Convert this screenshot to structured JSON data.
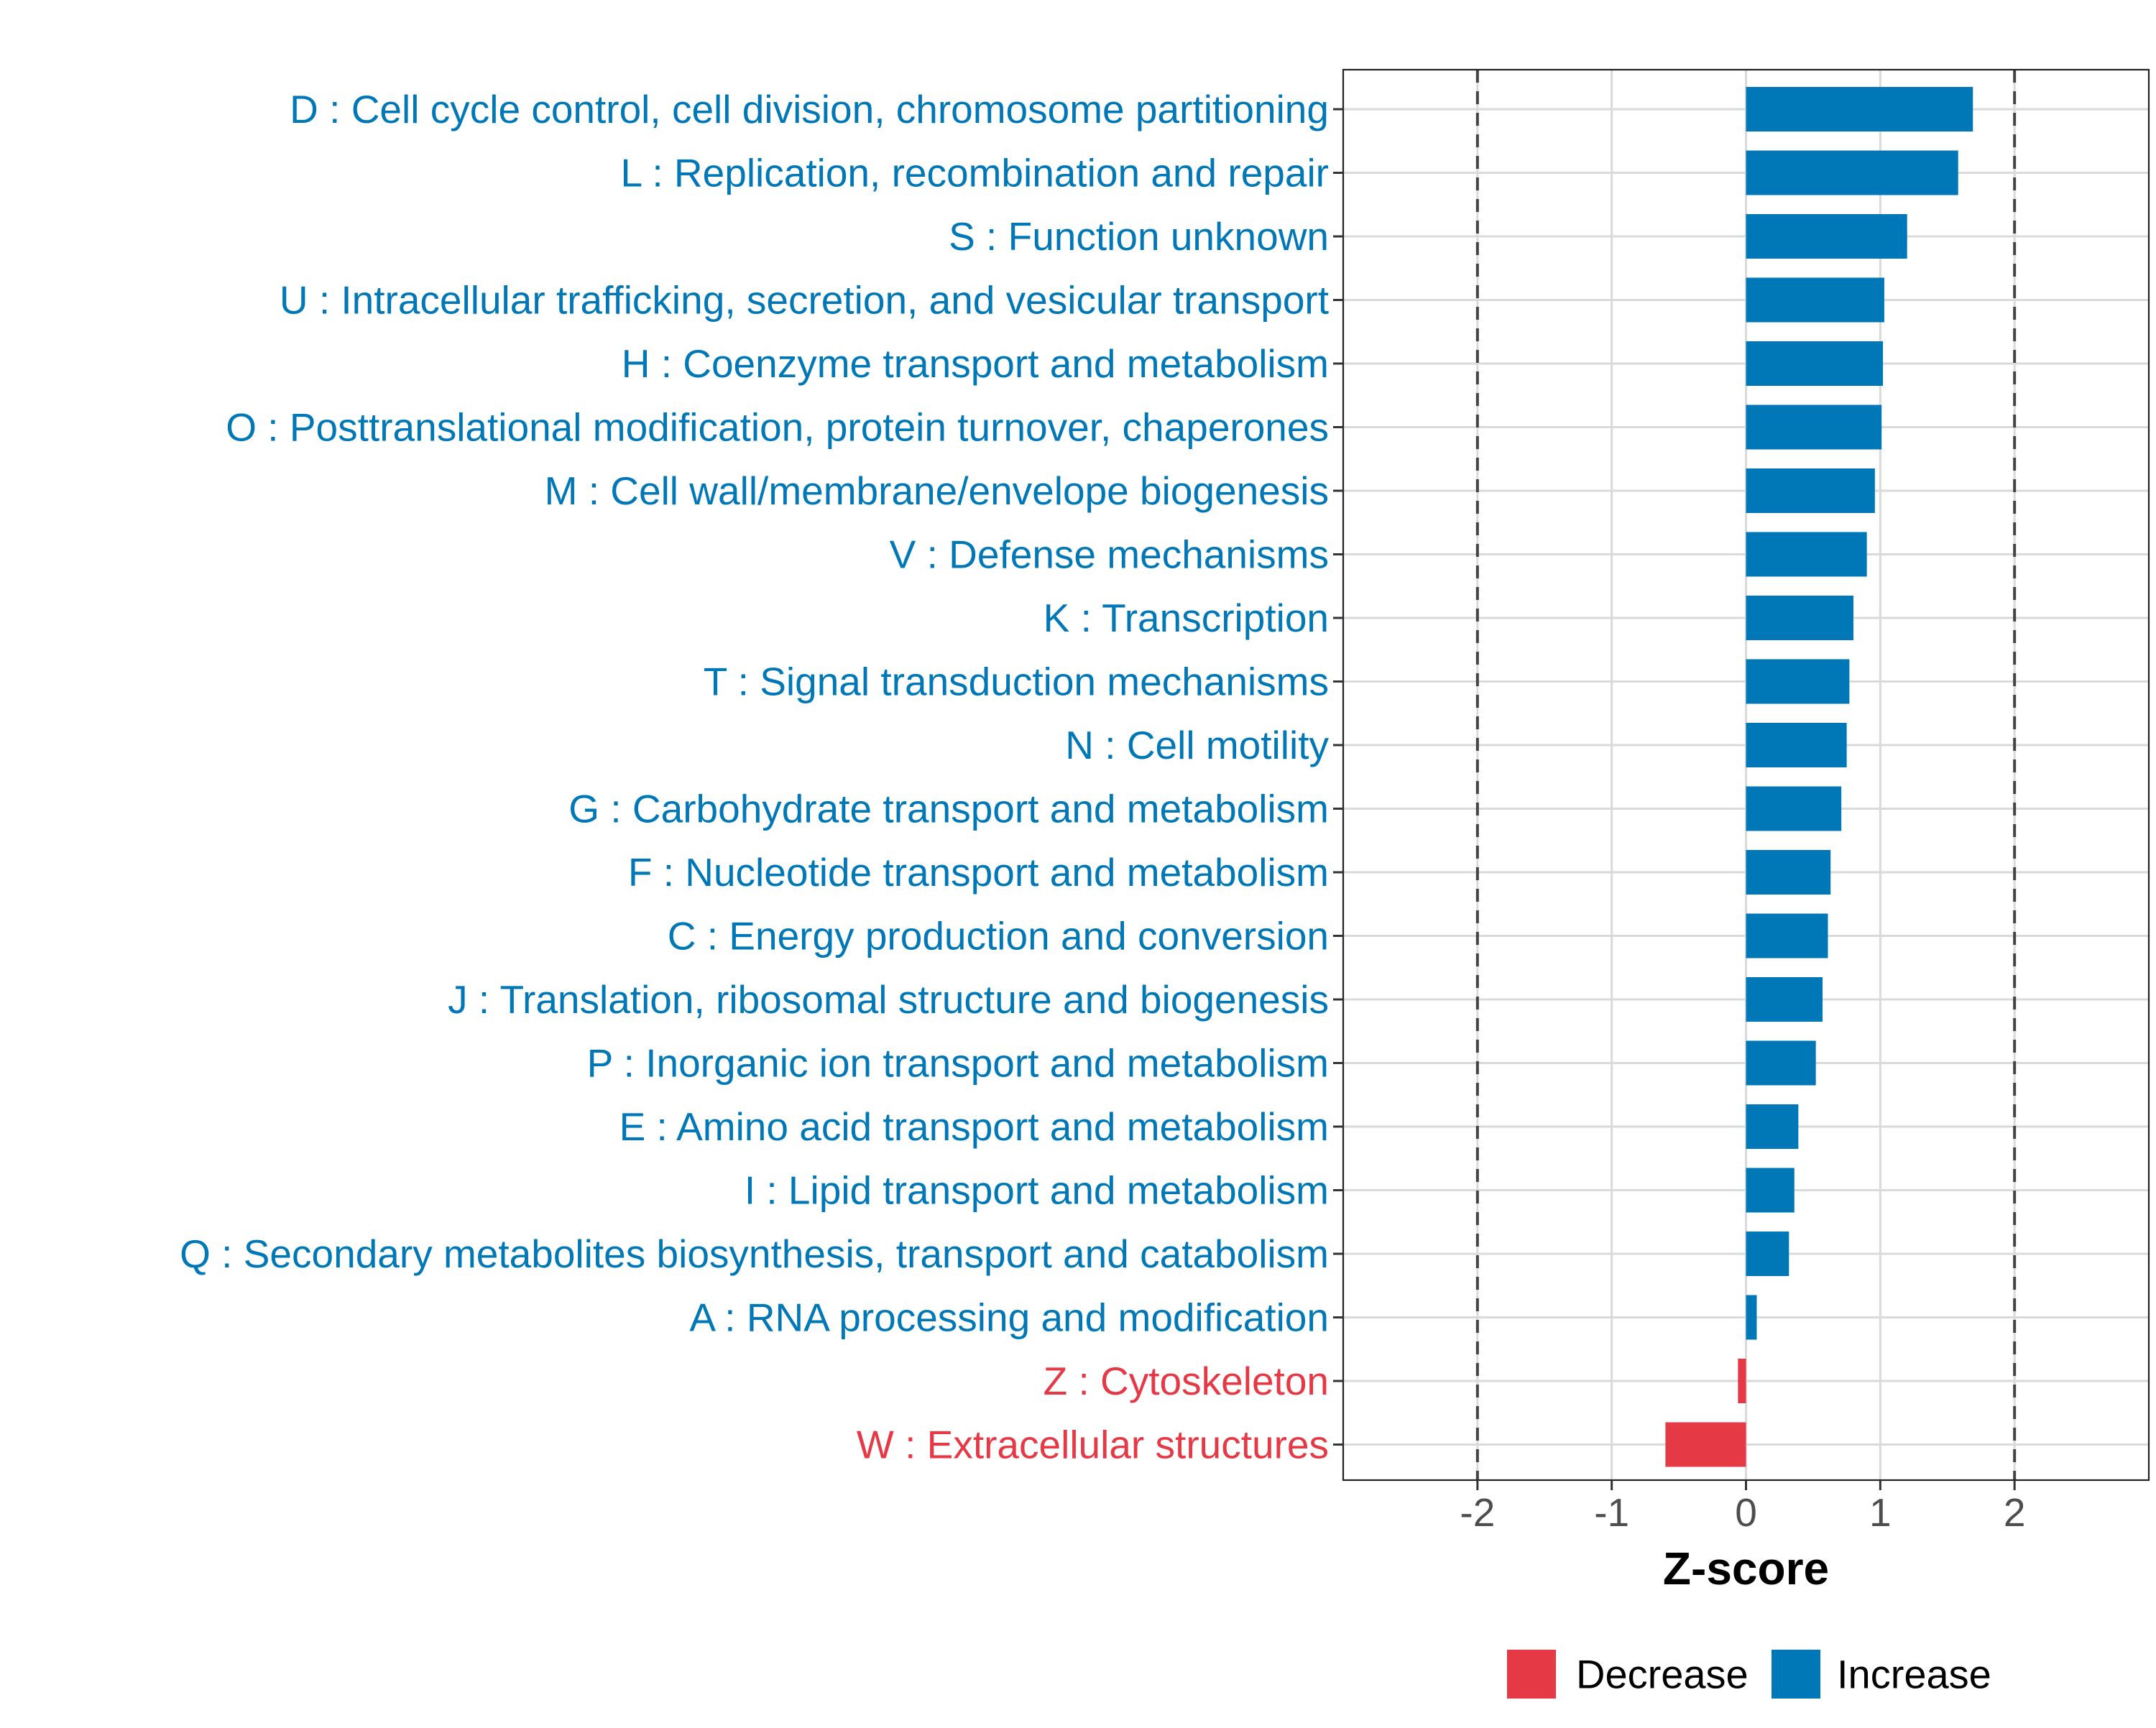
{
  "chart_data": {
    "type": "bar",
    "orientation": "horizontal",
    "title": "",
    "xlabel": "Z-score",
    "ylabel": "",
    "xlim": [
      -3,
      3
    ],
    "x_ticks": [
      -2,
      -1,
      0,
      1,
      2
    ],
    "x_tick_labels": [
      "-2",
      "-1",
      "0",
      "1",
      "2"
    ],
    "reference_lines": [
      -2,
      2
    ],
    "grid": true,
    "legend_position": "bottom",
    "colors": {
      "Decrease": "#E63946",
      "Increase": "#0077B6"
    },
    "legend": [
      {
        "label": "Decrease",
        "color": "#E63946"
      },
      {
        "label": "Increase",
        "color": "#0077B6"
      }
    ],
    "categories": [
      "D : Cell cycle control, cell division, chromosome partitioning",
      "L : Replication, recombination and repair",
      "S : Function unknown",
      "U : Intracellular trafficking, secretion, and vesicular transport",
      "H : Coenzyme transport and metabolism",
      "O : Posttranslational modification, protein turnover, chaperones",
      "M : Cell wall/membrane/envelope biogenesis",
      "V : Defense mechanisms",
      "K : Transcription",
      "T : Signal transduction mechanisms",
      "N : Cell motility",
      "G : Carbohydrate transport and metabolism",
      "F : Nucleotide transport and metabolism",
      "C : Energy production and conversion",
      "J : Translation, ribosomal structure and biogenesis",
      "P : Inorganic ion transport and metabolism",
      "E : Amino acid transport and metabolism",
      "I : Lipid transport and metabolism",
      "Q : Secondary metabolites biosynthesis, transport and catabolism",
      "A : RNA processing and modification",
      "Z : Cytoskeleton",
      "W : Extracellular structures"
    ],
    "values": [
      1.69,
      1.58,
      1.2,
      1.03,
      1.02,
      1.01,
      0.96,
      0.9,
      0.8,
      0.77,
      0.75,
      0.71,
      0.63,
      0.61,
      0.57,
      0.52,
      0.39,
      0.36,
      0.32,
      0.08,
      -0.06,
      -0.6
    ],
    "groups": [
      "Increase",
      "Increase",
      "Increase",
      "Increase",
      "Increase",
      "Increase",
      "Increase",
      "Increase",
      "Increase",
      "Increase",
      "Increase",
      "Increase",
      "Increase",
      "Increase",
      "Increase",
      "Increase",
      "Increase",
      "Increase",
      "Increase",
      "Increase",
      "Decrease",
      "Decrease"
    ]
  }
}
